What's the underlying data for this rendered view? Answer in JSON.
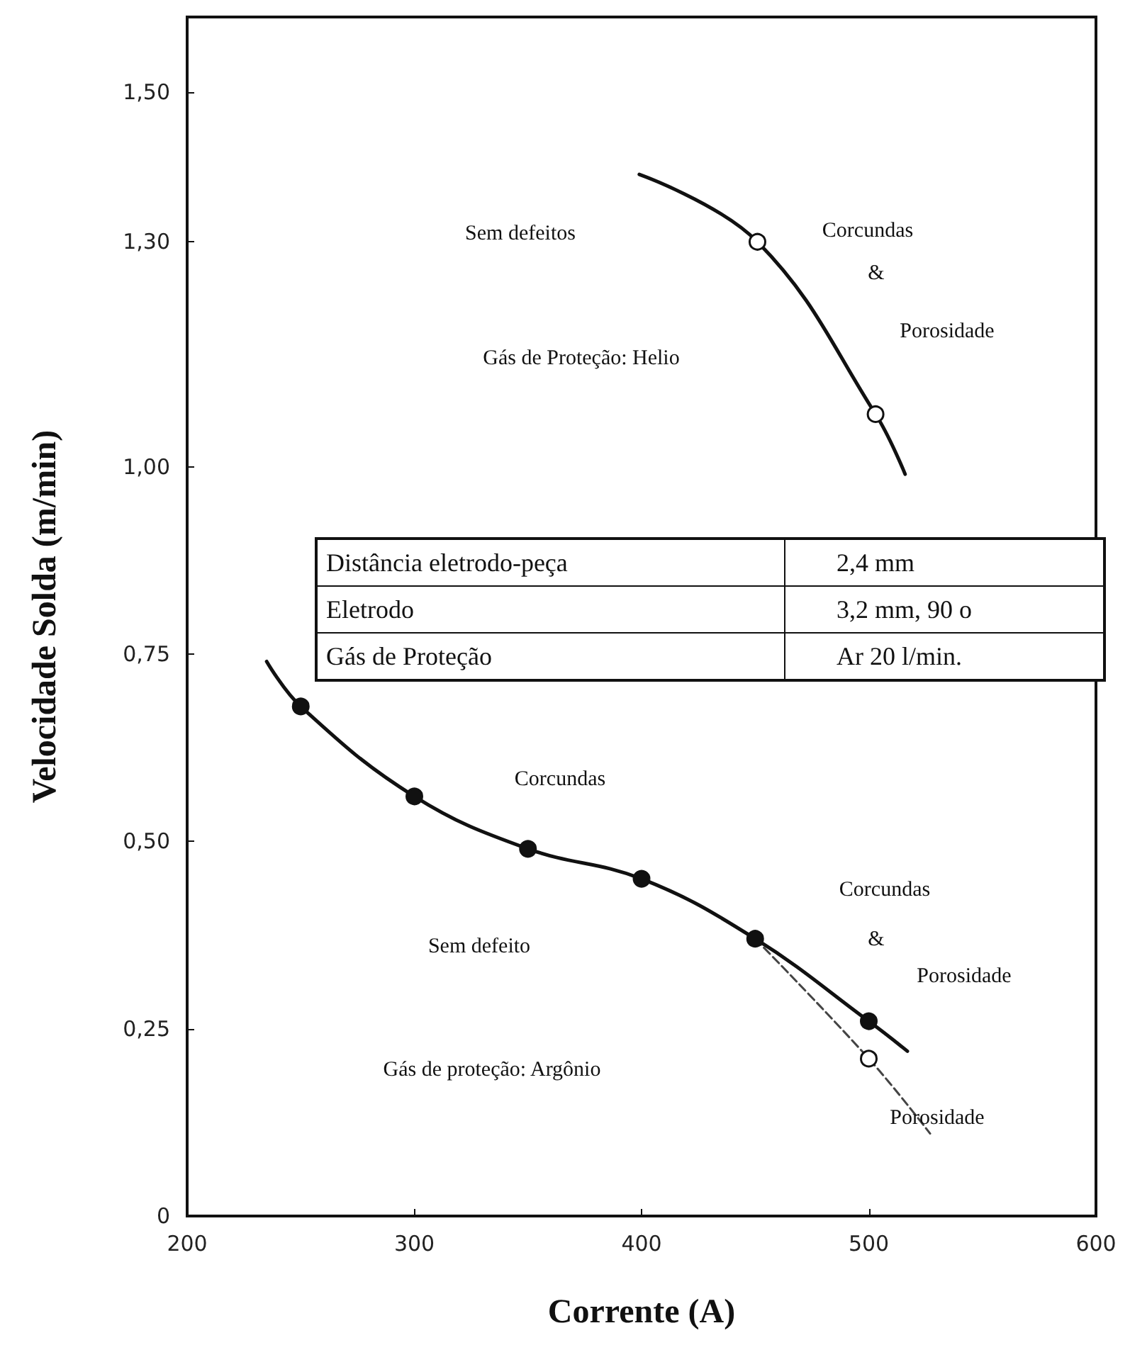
{
  "chart_data": {
    "type": "line",
    "xlabel": "Corrente (A)",
    "ylabel": "Velocidade Solda (m/min)",
    "xlim": [
      200,
      600
    ],
    "xticks": [
      200,
      300,
      400,
      500,
      600
    ],
    "ylim": [
      0,
      1.6
    ],
    "yticks": [
      0,
      {
        "value": 0.25,
        "label": "0,25"
      },
      {
        "value": 0.5,
        "label": "0,50"
      },
      {
        "value": 0.75,
        "label": "0,75"
      },
      {
        "value": 1.0,
        "label": "1,00"
      },
      {
        "value": 1.3,
        "label": "1,30"
      },
      {
        "value": 1.5,
        "label": "1,50"
      }
    ],
    "grid": false,
    "series": [
      {
        "color": "#111111",
        "marker": "none",
        "line_style": "solid",
        "x": [
          399,
          451,
          503,
          516
        ],
        "values": [
          1.39,
          1.3,
          1.07,
          0.99
        ]
      },
      {
        "type": "scatter",
        "color": "#ffffff",
        "marker": "circle",
        "x": [
          451,
          503
        ],
        "values": [
          1.3,
          1.07
        ]
      },
      {
        "color": "#111111",
        "marker": "none",
        "line_style": "solid",
        "x": [
          235,
          250,
          300,
          350,
          400,
          450,
          500,
          517
        ],
        "values": [
          0.74,
          0.68,
          0.56,
          0.49,
          0.45,
          0.37,
          0.26,
          0.22
        ]
      },
      {
        "type": "scatter",
        "color": "#111111",
        "marker": "circle",
        "x": [
          250,
          300,
          350,
          400,
          450,
          500
        ],
        "values": [
          0.68,
          0.56,
          0.49,
          0.45,
          0.37,
          0.26
        ]
      },
      {
        "color": "#444444",
        "marker": "none",
        "line_style": "dashed",
        "x": [
          450,
          500,
          527
        ],
        "values": [
          0.37,
          0.21,
          0.11
        ]
      },
      {
        "type": "scatter",
        "color": "#ffffff",
        "marker": "circle",
        "x": [
          500
        ],
        "values": [
          0.21
        ]
      }
    ],
    "annotations": [
      "Sem defeitos",
      "Corcundas",
      "&",
      "Porosidade",
      "Gás de Proteção: Helio",
      "Distância eletrodo-peça",
      "2,4 mm",
      "Eletrodo",
      "3,2 mm, 90 o",
      "Gás de Proteção",
      "Ar 20 l/min.",
      "Corcundas",
      "Corcundas",
      "&",
      "Porosidade",
      "Sem defeito",
      "Gás de proteção: Argônio",
      "Porosidade"
    ]
  }
}
